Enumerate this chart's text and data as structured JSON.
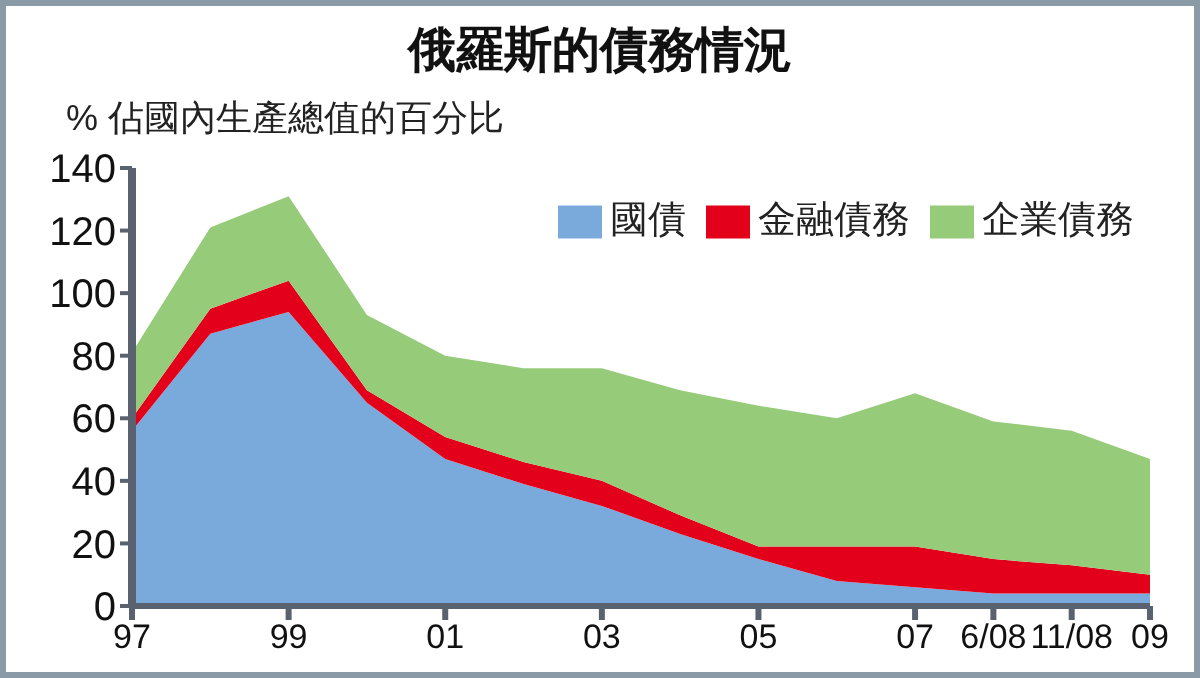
{
  "chart_data": {
    "type": "area",
    "title": "俄羅斯的債務情況",
    "ylabel": "% 佔國內生產總值的百分比",
    "stacked": true,
    "categories": [
      "97",
      null,
      "99",
      null,
      "01",
      null,
      "03",
      null,
      "05",
      null,
      "07",
      "6/08",
      "11/08",
      "09"
    ],
    "series": [
      {
        "name": "國債",
        "color": "#7aaadc",
        "values": [
          56,
          87,
          94,
          65,
          47,
          39,
          32,
          23,
          15,
          8,
          6,
          4,
          4,
          4
        ]
      },
      {
        "name": "金融債務",
        "color": "#e2001a",
        "values": [
          4,
          8,
          10,
          4,
          7,
          7,
          8,
          6,
          4,
          11,
          13,
          11,
          9,
          6
        ]
      },
      {
        "name": "企業債務",
        "color": "#96cb7a",
        "values": [
          21,
          26,
          27,
          24,
          26,
          30,
          36,
          40,
          45,
          41,
          49,
          44,
          43,
          37
        ]
      }
    ],
    "ylim": [
      0,
      140
    ],
    "yticks": [
      0,
      20,
      40,
      60,
      80,
      100,
      120,
      140
    ],
    "grid": false,
    "legend": "top right"
  }
}
